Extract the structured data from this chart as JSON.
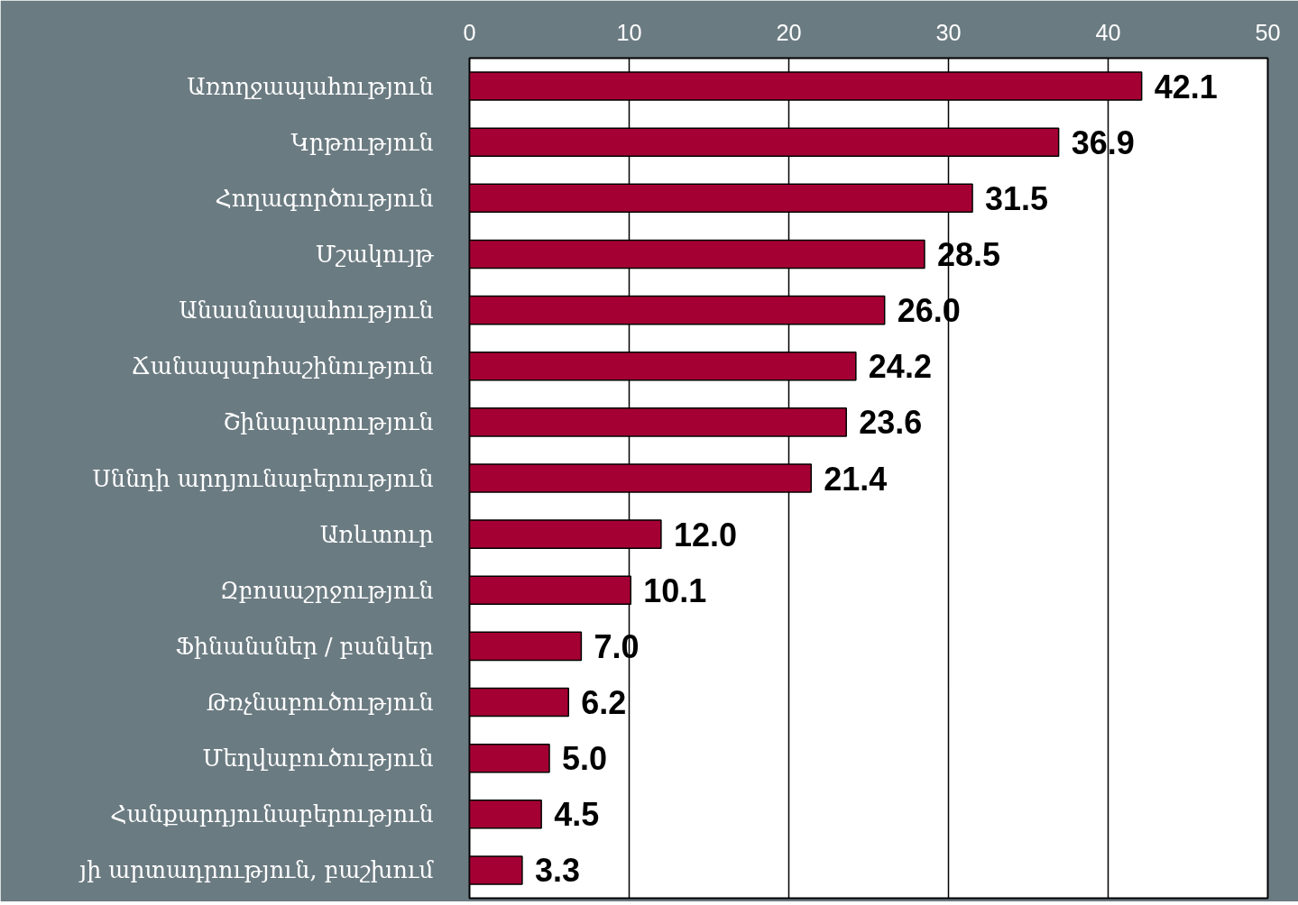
{
  "chart_data": {
    "type": "bar",
    "orientation": "horizontal",
    "categories": [
      "Առողջապահություն",
      "Կրթություն",
      "Հողագործություն",
      "Մշակույթ",
      "Անասնապահություն",
      "Ճանապարհաշինություն",
      "Շինարարություն",
      "Սննդի արդյունաբերություն",
      "Առևտուր",
      "Զբոսաշրջություն",
      "Ֆինանսներ / բանկեր",
      "Թռչնաբուծություն",
      "Մեղվաբուծություն",
      "Հանքարդյունաբերություն",
      "յի արտադրություն, բաշխում"
    ],
    "values": [
      42.1,
      36.9,
      31.5,
      28.5,
      26.0,
      24.2,
      23.6,
      21.4,
      12.0,
      10.1,
      7.0,
      6.2,
      5.0,
      4.5,
      3.3
    ],
    "value_labels": [
      "42.1",
      "36.9",
      "31.5",
      "28.5",
      "26.0",
      "24.2",
      "23.6",
      "21.4",
      "12.0",
      "10.1",
      "7.0",
      "6.2",
      "5.0",
      "4.5",
      "3.3"
    ],
    "color": "#a50034",
    "xlim": [
      0,
      50
    ],
    "xticks": [
      0,
      10,
      20,
      30,
      40,
      50
    ],
    "grid": "x"
  }
}
